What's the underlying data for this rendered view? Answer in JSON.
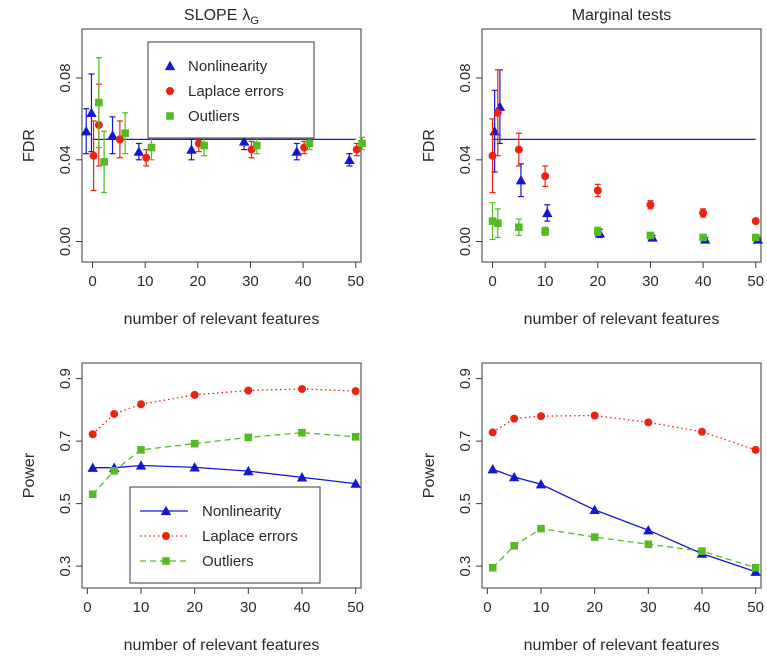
{
  "colors": {
    "nonlinearity": "#1515d9",
    "laplace": "#ee2211",
    "outliers": "#55bb22",
    "reference": "#1a1ae0"
  },
  "chart_data": [
    {
      "id": "p1",
      "type": "scatter",
      "title": "SLOPE",
      "title_symbol": "λ",
      "title_subscript": "G",
      "xlabel": "number of relevant features",
      "ylabel": "FDR",
      "xlim": [
        -2,
        51
      ],
      "ylim": [
        -0.01,
        0.104
      ],
      "xticks": [
        0,
        10,
        20,
        30,
        40,
        50
      ],
      "yticks": [
        0.0,
        0.04,
        0.08
      ],
      "ytick_labels": [
        "0.00",
        "0.04",
        "0.08"
      ],
      "reference_line": 0.05,
      "legend": {
        "position": "top-center",
        "entries": [
          "Nonlinearity",
          "Laplace errors",
          "Outliers"
        ]
      },
      "series": [
        {
          "name": "Nonlinearity",
          "marker": "triangle",
          "x": [
            0,
            1,
            5,
            10,
            20,
            30,
            40,
            50
          ],
          "y": [
            0.054,
            0.063,
            0.052,
            0.044,
            0.045,
            0.049,
            0.044,
            0.04
          ],
          "err": [
            0.011,
            0.019,
            0.009,
            0.004,
            0.005,
            0.004,
            0.004,
            0.003
          ],
          "dx": -1.2
        },
        {
          "name": "Laplace errors",
          "marker": "circle",
          "x": [
            0,
            1,
            5,
            10,
            20,
            30,
            40,
            50
          ],
          "y": [
            0.042,
            0.057,
            0.05,
            0.041,
            0.048,
            0.045,
            0.046,
            0.045
          ],
          "err": [
            0.017,
            0.02,
            0.009,
            0.004,
            0.004,
            0.004,
            0.003,
            0.003
          ],
          "dx": 0.2
        },
        {
          "name": "Outliers",
          "marker": "square",
          "x": [
            0,
            1,
            5,
            10,
            20,
            30,
            40,
            50
          ],
          "y": [
            0.068,
            0.039,
            0.053,
            0.046,
            0.047,
            0.047,
            0.048,
            0.048
          ],
          "err": [
            0.022,
            0.015,
            0.01,
            0.006,
            0.005,
            0.004,
            0.003,
            0.003
          ],
          "dx": 1.2
        }
      ]
    },
    {
      "id": "p2",
      "type": "scatter",
      "title": "Marginal tests",
      "xlabel": "number of relevant features",
      "ylabel": "FDR",
      "xlim": [
        -2,
        51
      ],
      "ylim": [
        -0.01,
        0.104
      ],
      "xticks": [
        0,
        10,
        20,
        30,
        40,
        50
      ],
      "yticks": [
        0.0,
        0.04,
        0.08
      ],
      "ytick_labels": [
        "0.00",
        "0.04",
        "0.08"
      ],
      "reference_line": 0.05,
      "series": [
        {
          "name": "Nonlinearity",
          "marker": "triangle",
          "x": [
            0,
            1,
            5,
            10,
            20,
            30,
            40,
            50
          ],
          "y": [
            0.054,
            0.066,
            0.03,
            0.014,
            0.004,
            0.002,
            0.001,
            0.001
          ],
          "err": [
            0.02,
            0.018,
            0.008,
            0.004,
            0.002,
            0.001,
            0.001,
            0.001
          ],
          "dx": 0.4
        },
        {
          "name": "Laplace errors",
          "marker": "circle",
          "x": [
            0,
            1,
            5,
            10,
            20,
            30,
            40,
            50
          ],
          "y": [
            0.042,
            0.063,
            0.045,
            0.032,
            0.025,
            0.018,
            0.014,
            0.01
          ],
          "err": [
            0.018,
            0.021,
            0.008,
            0.005,
            0.003,
            0.002,
            0.002,
            0.001
          ],
          "dx": 0
        },
        {
          "name": "Outliers",
          "marker": "square",
          "x": [
            0,
            1,
            5,
            10,
            20,
            30,
            40,
            50
          ],
          "y": [
            0.01,
            0.009,
            0.007,
            0.005,
            0.005,
            0.003,
            0.002,
            0.002
          ],
          "err": [
            0.009,
            0.007,
            0.004,
            0.002,
            0.002,
            0.001,
            0.001,
            0.001
          ],
          "dx": 0
        }
      ]
    },
    {
      "id": "p3",
      "type": "line",
      "xlabel": "number of relevant features",
      "ylabel": "Power",
      "xlim": [
        -1,
        51
      ],
      "ylim": [
        0.23,
        0.95
      ],
      "xticks": [
        0,
        10,
        20,
        30,
        40,
        50
      ],
      "yticks": [
        0.3,
        0.5,
        0.7,
        0.9
      ],
      "ytick_labels": [
        "0.3",
        "0.5",
        "0.7",
        "0.9"
      ],
      "legend": {
        "position": "bottom-center",
        "entries": [
          "Nonlinearity",
          "Laplace errors",
          "Outliers"
        ]
      },
      "series": [
        {
          "name": "Nonlinearity",
          "marker": "triangle",
          "line": "solid",
          "x": [
            1,
            5,
            10,
            20,
            30,
            40,
            50
          ],
          "y": [
            0.615,
            0.615,
            0.622,
            0.616,
            0.604,
            0.584,
            0.564
          ]
        },
        {
          "name": "Laplace errors",
          "marker": "circle",
          "line": "dotted",
          "x": [
            1,
            5,
            10,
            20,
            30,
            40,
            50
          ],
          "y": [
            0.722,
            0.787,
            0.818,
            0.848,
            0.862,
            0.867,
            0.86
          ]
        },
        {
          "name": "Outliers",
          "marker": "square",
          "line": "dashed",
          "x": [
            1,
            5,
            10,
            20,
            30,
            40,
            50
          ],
          "y": [
            0.53,
            0.605,
            0.672,
            0.692,
            0.712,
            0.727,
            0.714
          ]
        }
      ]
    },
    {
      "id": "p4",
      "type": "line",
      "xlabel": "number of relevant features",
      "ylabel": "Power",
      "xlim": [
        -1,
        51
      ],
      "ylim": [
        0.23,
        0.95
      ],
      "xticks": [
        0,
        10,
        20,
        30,
        40,
        50
      ],
      "yticks": [
        0.3,
        0.5,
        0.7,
        0.9
      ],
      "ytick_labels": [
        "0.3",
        "0.5",
        "0.7",
        "0.9"
      ],
      "series": [
        {
          "name": "Nonlinearity",
          "marker": "triangle",
          "line": "solid",
          "x": [
            1,
            5,
            10,
            20,
            30,
            40,
            50
          ],
          "y": [
            0.61,
            0.585,
            0.562,
            0.48,
            0.415,
            0.34,
            0.282
          ]
        },
        {
          "name": "Laplace errors",
          "marker": "circle",
          "line": "dotted",
          "x": [
            1,
            5,
            10,
            20,
            30,
            40,
            50
          ],
          "y": [
            0.728,
            0.772,
            0.78,
            0.782,
            0.76,
            0.73,
            0.672
          ]
        },
        {
          "name": "Outliers",
          "marker": "square",
          "line": "dashed",
          "x": [
            1,
            5,
            10,
            20,
            30,
            40,
            50
          ],
          "y": [
            0.295,
            0.365,
            0.42,
            0.393,
            0.37,
            0.348,
            0.295
          ]
        }
      ]
    }
  ]
}
